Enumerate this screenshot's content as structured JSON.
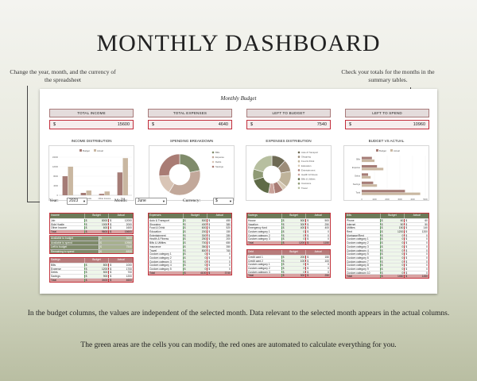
{
  "page": {
    "title": "MONTHLY DASHBOARD",
    "note_left": "Change the year, month, and the currency of the spreadsheet",
    "note_right": "Check your totals for the months in the summary tables.",
    "caption_1": "In the budget columns, the values are independent of the selected month. Data relevant to the selected month appears in the actual columns.",
    "caption_2": "The green areas are the cells you can modify, the red ones are automated to calculate everything for you."
  },
  "sheet": {
    "title": "Monthly Budget",
    "kpis": [
      {
        "label": "TOTAL INCOME",
        "currency": "$",
        "value": "15600"
      },
      {
        "label": "TOTAL EXPENSES",
        "currency": "$",
        "value": "4640"
      },
      {
        "label": "LEFT TO BUDGET",
        "currency": "$",
        "value": "7540"
      },
      {
        "label": "LEFT TO SPEND",
        "currency": "$",
        "value": "10960"
      }
    ],
    "charts": {
      "income_title": "INCOME DISTRIBUTION",
      "spending_title": "SPENDING BREAKDOWN",
      "expenses_title": "EXPENSES DISTRIBUTION",
      "budget_title": "BUDGET VS ACTUAL"
    },
    "controls": {
      "year_label": "Year:",
      "year_value": "2023",
      "month_label": "Month:",
      "month_value": "June",
      "currency_label": "Currency:",
      "currency_value": "$"
    },
    "tables": {
      "income": {
        "header": "Income",
        "col_budget": "Budget",
        "col_actual": "Actual",
        "rows": [
          [
            "Job",
            "8000",
            "12000"
          ],
          [
            "Side Hustle",
            "1000",
            "2000"
          ],
          [
            "Other Income",
            "600",
            "1600"
          ]
        ],
        "total": [
          "Total",
          "9600",
          "15600"
        ]
      },
      "savings": {
        "header": "Savings",
        "col_budget": "Budget",
        "col_actual": "Actual",
        "rows": [
          [
            "Bills",
            "800",
            "1000"
          ],
          [
            "Expense",
            "1200",
            "1700"
          ],
          [
            "Debts",
            "500",
            "700"
          ],
          [
            "Savings",
            "900",
            "1200"
          ]
        ],
        "total": [
          "Total",
          "3400",
          "4600"
        ]
      },
      "expenses": {
        "header": "Expenses",
        "col_budget": "Budget",
        "col_actual": "Actual",
        "rows": [
          [
            "Auto & Transport",
            "500",
            "450"
          ],
          [
            "Shopping",
            "400",
            "380"
          ],
          [
            "Food & Drink",
            "600",
            "520"
          ],
          [
            "Education",
            "200",
            "150"
          ],
          [
            "Entertainment",
            "300",
            "280"
          ],
          [
            "Health & Fitness",
            "250",
            "200"
          ],
          [
            "Bills & Utilities",
            "700",
            "650"
          ],
          [
            "Insurance",
            "350",
            "350"
          ],
          [
            "Travel",
            "800",
            "760"
          ],
          [
            "Custom category 1",
            "0",
            "0"
          ],
          [
            "Custom category 2",
            "0",
            "0"
          ],
          [
            "Custom category 3",
            "0",
            "0"
          ],
          [
            "Custom category 4",
            "0",
            "0"
          ],
          [
            "Custom category 5",
            "0",
            "0"
          ]
        ],
        "total": [
          "Total",
          "4100",
          "3740"
        ]
      },
      "savings_goals": {
        "header": "Savings",
        "col_budget": "Budget",
        "col_actual": "Actual",
        "rows": [
          [
            "House",
            "500",
            "500"
          ],
          [
            "Vacation",
            "300",
            "250"
          ],
          [
            "Emergency fund",
            "400",
            "400"
          ],
          [
            "Custom category 1",
            "0",
            "0"
          ],
          [
            "Custom category 2",
            "0",
            "0"
          ],
          [
            "Custom category 3",
            "0",
            "0"
          ]
        ],
        "total": [
          "Total",
          "1200",
          "1150"
        ]
      },
      "debt": {
        "header": "Debt",
        "col_budget": "Budget",
        "col_actual": "Actual",
        "rows": [
          [
            "Credit card 1",
            "200",
            "150"
          ],
          [
            "Credit card 2",
            "100",
            "100"
          ],
          [
            "Custom category 1",
            "0",
            "0"
          ],
          [
            "Custom category 2",
            "0",
            "0"
          ],
          [
            "Custom category 3",
            "0",
            "0"
          ]
        ],
        "total": [
          "Total",
          "300",
          "250"
        ]
      },
      "bills": {
        "header": "Bills",
        "col_budget": "Budget",
        "col_actual": "Actual",
        "rows": [
          [
            "Phone",
            "60",
            "60"
          ],
          [
            "Internet",
            "50",
            "50"
          ],
          [
            "Utilities",
            "150",
            "140"
          ],
          [
            "Rent",
            "1200",
            "1200"
          ],
          [
            "Mortgage/Rent",
            "0",
            "0"
          ],
          [
            "Custom category 1",
            "0",
            "0"
          ],
          [
            "Custom category 2",
            "0",
            "0"
          ],
          [
            "Custom category 3",
            "0",
            "0"
          ],
          [
            "Custom category 4",
            "0",
            "0"
          ],
          [
            "Custom category 5",
            "0",
            "0"
          ],
          [
            "Custom category 6",
            "0",
            "0"
          ],
          [
            "Custom category 7",
            "0",
            "0"
          ],
          [
            "Custom category 8",
            "0",
            "0"
          ],
          [
            "Custom category 9",
            "0",
            "0"
          ],
          [
            "Custom category 10",
            "0",
            "0"
          ]
        ],
        "total": [
          "Total",
          "1460",
          "1450"
        ]
      },
      "summary": {
        "rows": [
          [
            "Available to budget",
            "5600"
          ],
          [
            "Available to spend",
            "10960"
          ],
          [
            "Left to budget",
            "7540"
          ],
          [
            "Remaining to spend",
            "6320"
          ]
        ]
      }
    },
    "colors": {
      "green": "#7f8b6a",
      "red": "#c2333c",
      "pink": "#d9a3a3",
      "olive": "#5f6b47",
      "beige": "#c9b7a1"
    }
  },
  "chart_data": [
    {
      "type": "bar",
      "title": "INCOME DISTRIBUTION",
      "categories": [
        "Job",
        "Side Hustle",
        "Other Income",
        "Total"
      ],
      "series": [
        {
          "name": "Budget",
          "values": [
            8000,
            1000,
            600,
            9600
          ]
        },
        {
          "name": "Actual",
          "values": [
            12000,
            2000,
            1600,
            15600
          ]
        }
      ],
      "ylim": [
        0,
        16000
      ],
      "legend": "top"
    },
    {
      "type": "pie",
      "title": "SPENDING BREAKDOWN",
      "categories": [
        "Bills",
        "Expense",
        "Debts",
        "Savings"
      ],
      "values": [
        1000,
        1700,
        700,
        1200
      ],
      "legend": "right"
    },
    {
      "type": "pie",
      "title": "EXPENSES DISTRIBUTION",
      "categories": [
        "Auto & Transport",
        "Shopping",
        "Food & Drink",
        "Education",
        "Entertainment",
        "Health & Fitness",
        "Bills & Utilities",
        "Insurance",
        "Travel"
      ],
      "values": [
        450,
        380,
        520,
        150,
        280,
        200,
        650,
        350,
        760
      ],
      "legend": "right"
    },
    {
      "type": "bar",
      "title": "BUDGET VS ACTUAL",
      "categories": [
        "Bills",
        "Expense",
        "Debts",
        "Savings",
        "Total"
      ],
      "series": [
        {
          "name": "Budget",
          "values": [
            800,
            1200,
            500,
            900,
            3400
          ]
        },
        {
          "name": "Actual",
          "values": [
            1000,
            1700,
            700,
            1200,
            4600
          ]
        }
      ],
      "xlim": [
        0,
        5000
      ],
      "orientation": "horizontal",
      "legend": "top"
    }
  ]
}
